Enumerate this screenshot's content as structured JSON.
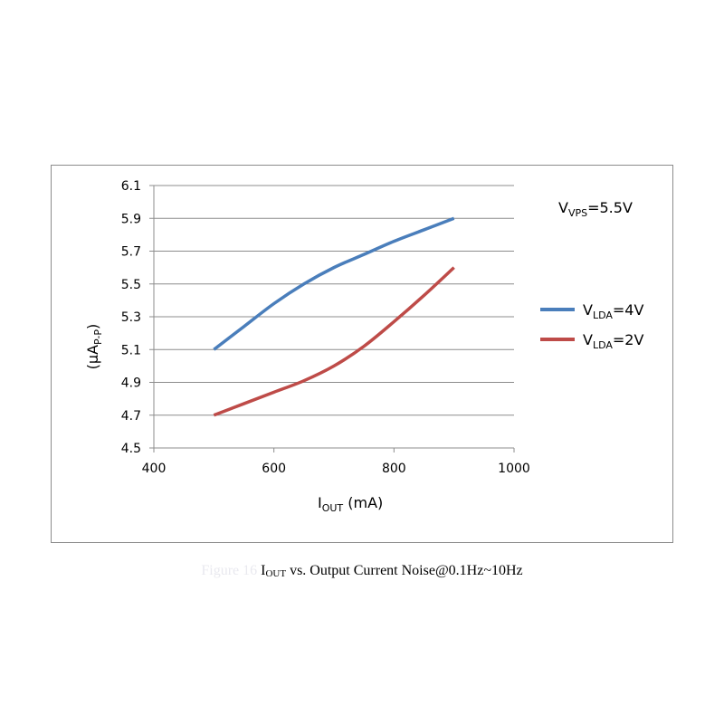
{
  "chart_data": {
    "type": "line",
    "x_label_main": "I",
    "x_label_sub": "OUT",
    "x_label_unit": " (mA)",
    "y_label_main": "(µA",
    "y_label_sub": "P-P",
    "y_label_end": ")",
    "annotation_main": "V",
    "annotation_sub": "VPS",
    "annotation_rest": "=5.5V",
    "xlim": [
      400,
      1000
    ],
    "ylim": [
      4.5,
      6.1
    ],
    "x_ticks": [
      "400",
      "600",
      "800",
      "1000"
    ],
    "y_ticks": [
      "4.5",
      "4.7",
      "4.9",
      "5.1",
      "5.3",
      "5.5",
      "5.7",
      "5.9",
      "6.1"
    ],
    "grid": "horizontal",
    "legend_position": "right",
    "series": [
      {
        "legend_main": "V",
        "legend_sub": "LDA",
        "legend_rest": "=4V",
        "color": "#4a7ebb",
        "x": [
          500,
          550,
          600,
          650,
          700,
          750,
          800,
          850,
          900
        ],
        "y": [
          5.1,
          5.24,
          5.38,
          5.5,
          5.6,
          5.68,
          5.76,
          5.83,
          5.9
        ]
      },
      {
        "legend_main": "V",
        "legend_sub": "LDA",
        "legend_rest": "=2V",
        "color": "#be4b48",
        "x": [
          500,
          550,
          600,
          650,
          700,
          750,
          800,
          850,
          900
        ],
        "y": [
          4.7,
          4.77,
          4.84,
          4.91,
          5.0,
          5.12,
          5.27,
          5.43,
          5.6
        ]
      }
    ]
  },
  "caption": {
    "prefix": "Figure 16",
    "i": "I",
    "sub": "OUT",
    "rest": " vs. Output Current Noise@0.1Hz~10Hz"
  }
}
